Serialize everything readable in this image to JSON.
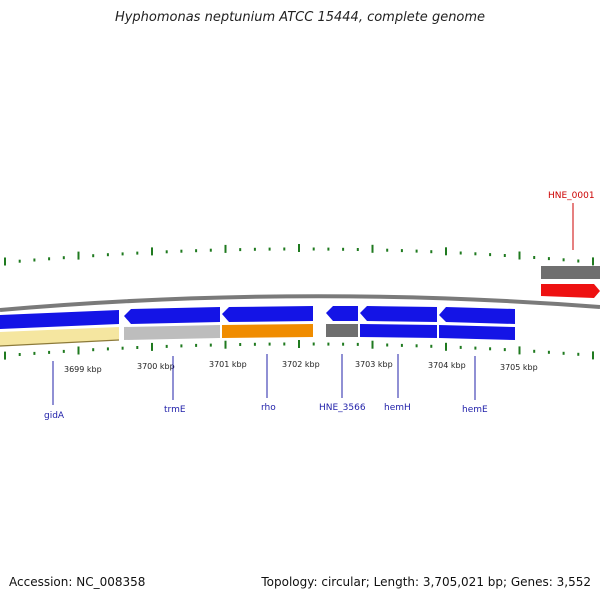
{
  "title": "Hyphomonas neptunium ATCC 15444, complete genome",
  "footer": {
    "accession": "Accession: NC_008358",
    "summary": "Topology: circular; Length: 3,705,021 bp; Genes: 3,552"
  },
  "colors": {
    "backbone": "#7a7a7a",
    "tick": "#1f7a1f",
    "gene_blue": "#1414e6",
    "gene_gray": "#bdbdbd",
    "gene_darkgray": "#6f6f6f",
    "gene_orange": "#f08c00",
    "gene_yellow": "#f5e6a0",
    "gene_red": "#ee1111",
    "label_blue": "#2222aa",
    "label_red": "#cc0000"
  },
  "kbp_labels": [
    "3699 kbp",
    "3700 kbp",
    "3701 kbp",
    "3702 kbp",
    "3703 kbp",
    "3704 kbp",
    "3705 kbp"
  ],
  "genes": [
    {
      "name": "gidA"
    },
    {
      "name": "trmE"
    },
    {
      "name": "rho"
    },
    {
      "name": "HNE_3566"
    },
    {
      "name": "hemH"
    },
    {
      "name": "hemE"
    },
    {
      "name": "HNE_0001"
    }
  ]
}
